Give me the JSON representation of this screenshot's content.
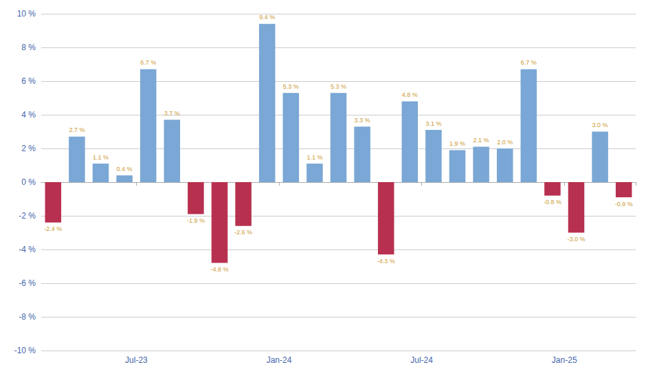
{
  "chart_data": {
    "type": "bar",
    "categories": [
      null,
      null,
      null,
      null,
      "Jul-23",
      null,
      null,
      null,
      null,
      null,
      "Jan-24",
      null,
      null,
      null,
      null,
      null,
      "Jul-24",
      null,
      null,
      null,
      null,
      null,
      "Jan-25",
      null,
      null
    ],
    "values": [
      -2.4,
      2.7,
      1.1,
      0.4,
      6.7,
      3.7,
      -1.9,
      -4.8,
      -2.6,
      9.4,
      5.3,
      1.1,
      5.3,
      3.3,
      -4.3,
      4.8,
      3.1,
      1.9,
      2.1,
      2.0,
      6.7,
      -0.8,
      -3.0,
      3.0,
      -0.9
    ],
    "value_labels": [
      "-2.4 %",
      "2.7 %",
      "1.1 %",
      "0.4 %",
      "6.7 %",
      "3.7 %",
      "-1.9 %",
      "-4.8 %",
      "-2.6 %",
      "9.4 %",
      "5.3 %",
      "1.1 %",
      "5.3 %",
      "3.3 %",
      "-4.3 %",
      "4.8 %",
      "3.1 %",
      "1.9 %",
      "2.1 %",
      "2.0 %",
      "6.7 %",
      "-0.8 %",
      "-3.0 %",
      "3.0 %",
      "-0.9 %"
    ],
    "colors": [
      "#B8304F",
      "#7AA7D5",
      "#7AA7D5",
      "#7AA7D5",
      "#7AA7D5",
      "#7AA7D5",
      "#B8304F",
      "#B8304F",
      "#B8304F",
      "#7AA7D5",
      "#7AA7D5",
      "#7AA7D5",
      "#7AA7D5",
      "#7AA7D5",
      "#B8304F",
      "#7AA7D5",
      "#7AA7D5",
      "#7AA7D5",
      "#7AA7D5",
      "#7AA7D5",
      "#7AA7D5",
      "#B8304F",
      "#B8304F",
      "#7AA7D5",
      "#B8304F"
    ],
    "ylim": [
      -10,
      10
    ],
    "yticks": [
      {
        "value": -10,
        "label": "-10 %"
      },
      {
        "value": -8,
        "label": "-8 %"
      },
      {
        "value": -6,
        "label": "-6 %"
      },
      {
        "value": -4,
        "label": "-4 %"
      },
      {
        "value": -2,
        "label": "-2 %"
      },
      {
        "value": 0,
        "label": "0 %"
      },
      {
        "value": 2,
        "label": "2 %"
      },
      {
        "value": 4,
        "label": "4 %"
      },
      {
        "value": 6,
        "label": "6 %"
      },
      {
        "value": 8,
        "label": "8 %"
      },
      {
        "value": 10,
        "label": "10 %"
      }
    ],
    "grid": true,
    "data_labels": true
  }
}
